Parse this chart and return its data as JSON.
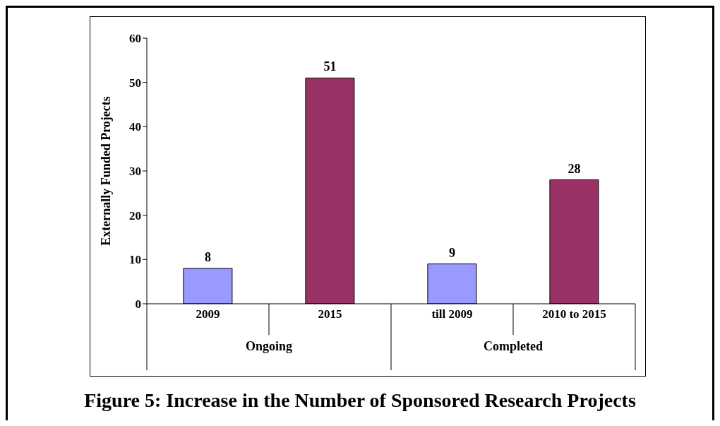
{
  "chart_data": {
    "type": "bar",
    "title": "Figure 5: Increase in the Number of Sponsored Research Projects",
    "ylabel": "Externally Funded Projects",
    "categories": [
      "2009",
      "2015",
      "till 2009",
      "2010 to 2015"
    ],
    "values": [
      8,
      51,
      9,
      28
    ],
    "colors": [
      "#9999ff",
      "#993366",
      "#9999ff",
      "#993366"
    ],
    "annotations": [
      "Ongoing",
      "Completed"
    ],
    "ylim": [
      0,
      60
    ],
    "yticks": [
      0,
      10,
      20,
      30,
      40,
      50,
      60
    ],
    "grid": false,
    "data_labels": true
  }
}
